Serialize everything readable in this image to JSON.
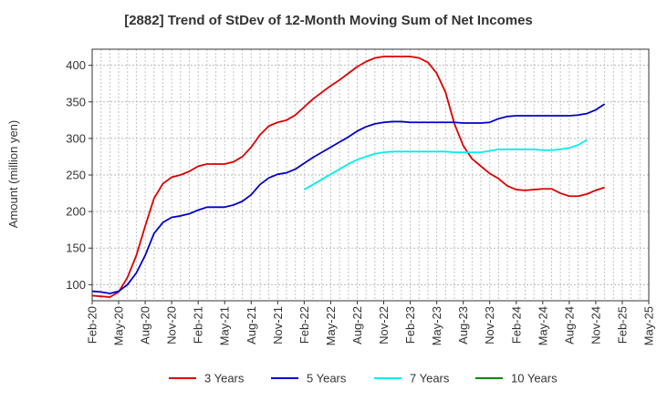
{
  "chart_data": {
    "type": "line",
    "title": "[2882]  Trend of StDev of 12-Month Moving Sum of Net Incomes",
    "xlabel": "",
    "ylabel": "Amount (million yen)",
    "ylim": [
      78,
      422
    ],
    "yticks": [
      100,
      150,
      200,
      250,
      300,
      350,
      400
    ],
    "xticks": [
      "Feb-20",
      "May-20",
      "Aug-20",
      "Nov-20",
      "Feb-21",
      "May-21",
      "Aug-21",
      "Nov-21",
      "Feb-22",
      "May-22",
      "Aug-22",
      "Nov-22",
      "Feb-23",
      "May-23",
      "Aug-23",
      "Nov-23",
      "Feb-24",
      "May-24",
      "Aug-24",
      "Nov-24",
      "Feb-25",
      "May-25"
    ],
    "grid": true,
    "legend_position": "bottom",
    "series": [
      {
        "name": "3 Years",
        "color": "#dd0000",
        "start_month": "Feb-20",
        "values": [
          85,
          84,
          83,
          90,
          110,
          140,
          180,
          218,
          238,
          247,
          250,
          255,
          262,
          265,
          265,
          265,
          268,
          275,
          288,
          305,
          317,
          322,
          325,
          332,
          343,
          354,
          363,
          372,
          380,
          389,
          398,
          405,
          410,
          412,
          412,
          412,
          412,
          410,
          404,
          389,
          363,
          320,
          290,
          272,
          262,
          252,
          245,
          235,
          230,
          229,
          230,
          231,
          231,
          225,
          221,
          221,
          224,
          229,
          233
        ]
      },
      {
        "name": "5 Years",
        "color": "#0000cc",
        "start_month": "Feb-20",
        "values": [
          91,
          90,
          88,
          91,
          100,
          116,
          140,
          170,
          185,
          192,
          194,
          197,
          202,
          206,
          206,
          206,
          209,
          214,
          223,
          237,
          246,
          251,
          253,
          258,
          266,
          274,
          281,
          288,
          295,
          302,
          310,
          316,
          320,
          322,
          323,
          323,
          322,
          322,
          322,
          322,
          322,
          322,
          321,
          321,
          321,
          322,
          327,
          330,
          331,
          331,
          331,
          331,
          331,
          331,
          331,
          332,
          334,
          339,
          347
        ]
      },
      {
        "name": "7 Years",
        "color": "#00eeee",
        "start_month": "Feb-22",
        "values": [
          230,
          237,
          244,
          251,
          258,
          265,
          271,
          275,
          279,
          281,
          282,
          282,
          282,
          282,
          282,
          282,
          282,
          281,
          281,
          281,
          281,
          283,
          285,
          285,
          285,
          285,
          285,
          284,
          284,
          285,
          287,
          291,
          298
        ]
      },
      {
        "name": "10 Years",
        "color": "#008800",
        "start_month": "Feb-25",
        "values": []
      }
    ]
  }
}
